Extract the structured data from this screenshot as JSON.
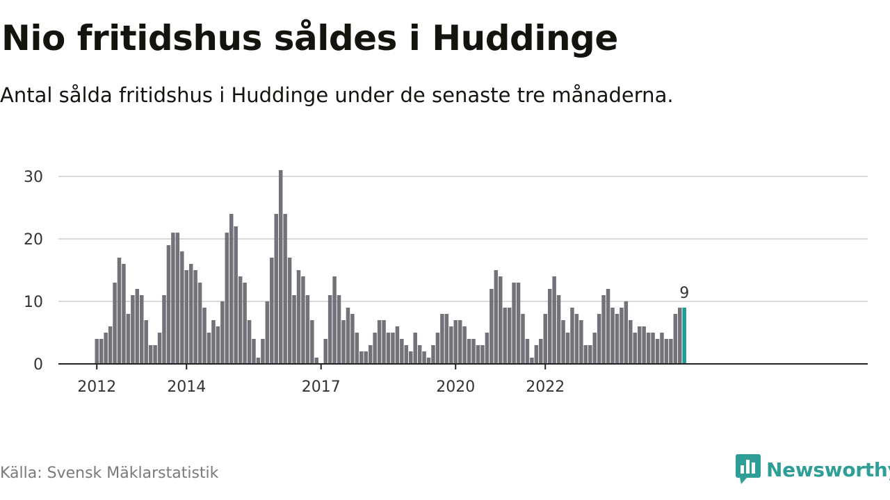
{
  "header": {
    "title": "Nio fritidshus såldes i Huddinge",
    "subtitle": "Antal sålda fritidshus i Huddinge under de senaste tre månaderna."
  },
  "footer": {
    "source": "Källa: Svensk Mäklarstatistik",
    "brand": "Newsworthy"
  },
  "colors": {
    "bar": "#737278",
    "highlight": "#1a9e96",
    "grid": "#d9d9d9",
    "axis": "#222222",
    "brand": "#2e9e96"
  },
  "chart_data": {
    "type": "bar",
    "title": "",
    "xlabel": "",
    "ylabel": "",
    "ylim": [
      0,
      30
    ],
    "yticks": [
      0,
      10,
      20,
      30
    ],
    "xtick_labels": [
      {
        "label": "2012",
        "index": 0
      },
      {
        "label": "2014",
        "index": 20
      },
      {
        "label": "2017",
        "index": 50
      },
      {
        "label": "2020",
        "index": 80
      },
      {
        "label": "2022",
        "index": 100
      }
    ],
    "grid": true,
    "highlight_label": "9",
    "values": [
      4,
      4,
      5,
      6,
      13,
      17,
      16,
      8,
      11,
      12,
      11,
      7,
      3,
      3,
      5,
      11,
      19,
      21,
      21,
      18,
      15,
      16,
      15,
      13,
      9,
      5,
      7,
      6,
      10,
      21,
      24,
      22,
      14,
      13,
      7,
      4,
      1,
      4,
      10,
      17,
      24,
      31,
      24,
      17,
      11,
      15,
      14,
      11,
      7,
      1,
      0,
      4,
      11,
      14,
      11,
      7,
      9,
      8,
      5,
      2,
      2,
      3,
      5,
      7,
      7,
      5,
      5,
      6,
      4,
      3,
      2,
      5,
      3,
      2,
      1,
      3,
      5,
      8,
      8,
      6,
      7,
      7,
      6,
      4,
      4,
      3,
      3,
      5,
      12,
      15,
      14,
      9,
      9,
      13,
      13,
      8,
      4,
      1,
      3,
      4,
      8,
      12,
      14,
      11,
      7,
      5,
      9,
      8,
      7,
      3,
      3,
      5,
      8,
      11,
      12,
      9,
      8,
      9,
      10,
      7,
      5,
      6,
      6,
      5,
      5,
      4,
      5,
      4,
      4,
      8,
      9,
      9
    ]
  }
}
